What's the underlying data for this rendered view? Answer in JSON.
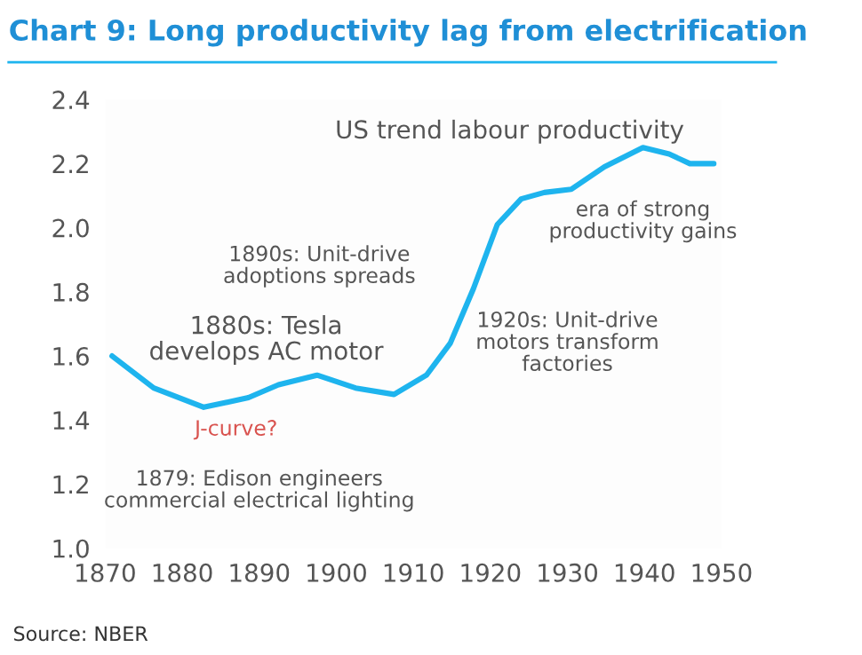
{
  "chart_data": {
    "type": "line",
    "title": "Chart 9: Long productivity lag from electrification",
    "x": [
      1870.9,
      1876.3,
      1882.8,
      1888.6,
      1892.5,
      1897.5,
      1902.5,
      1907.5,
      1911.7,
      1914.8,
      1917.8,
      1920.9,
      1924,
      1927,
      1930.5,
      1934.8,
      1939.8,
      1943.2,
      1945.9,
      1949
    ],
    "series": [
      {
        "color": "#1eb4ee",
        "values": [
          1.6,
          1.5,
          1.44,
          1.47,
          1.51,
          1.54,
          1.5,
          1.48,
          1.54,
          1.64,
          1.81,
          2.01,
          2.09,
          2.11,
          2.12,
          2.19,
          2.25,
          2.23,
          2.2,
          2.2
        ]
      }
    ],
    "xlim": [
      1870,
      1950
    ],
    "xticks": [
      1870,
      1880,
      1890,
      1900,
      1910,
      1920,
      1930,
      1940,
      1950
    ],
    "ylim": [
      1.0,
      2.4
    ],
    "yticks": [
      {
        "value": 1.0,
        "label": "1.0"
      },
      {
        "value": 1.2,
        "label": "1.2"
      },
      {
        "value": 1.4,
        "label": "1.4"
      },
      {
        "value": 1.6,
        "label": "1.6"
      },
      {
        "value": 1.8,
        "label": "1.8"
      },
      {
        "value": 2.0,
        "label": "2.0"
      },
      {
        "value": 2.2,
        "label": "2.2"
      },
      {
        "value": 2.4,
        "label": "2.4"
      }
    ],
    "grid": false,
    "legend": false,
    "marker": "none",
    "line_style": "solid",
    "annotations": [
      "US trend labour productivity",
      "1890s: Unit-drive\nadoptions spreads",
      "1880s: Tesla\ndevelops AC motor",
      "J-curve?",
      "1879: Edison engineers\ncommercial electrical lighting",
      "1920s: Unit-drive\nmotors transform\nfactories",
      "era of strong\nproductivity gains",
      "Source: NBER"
    ]
  }
}
